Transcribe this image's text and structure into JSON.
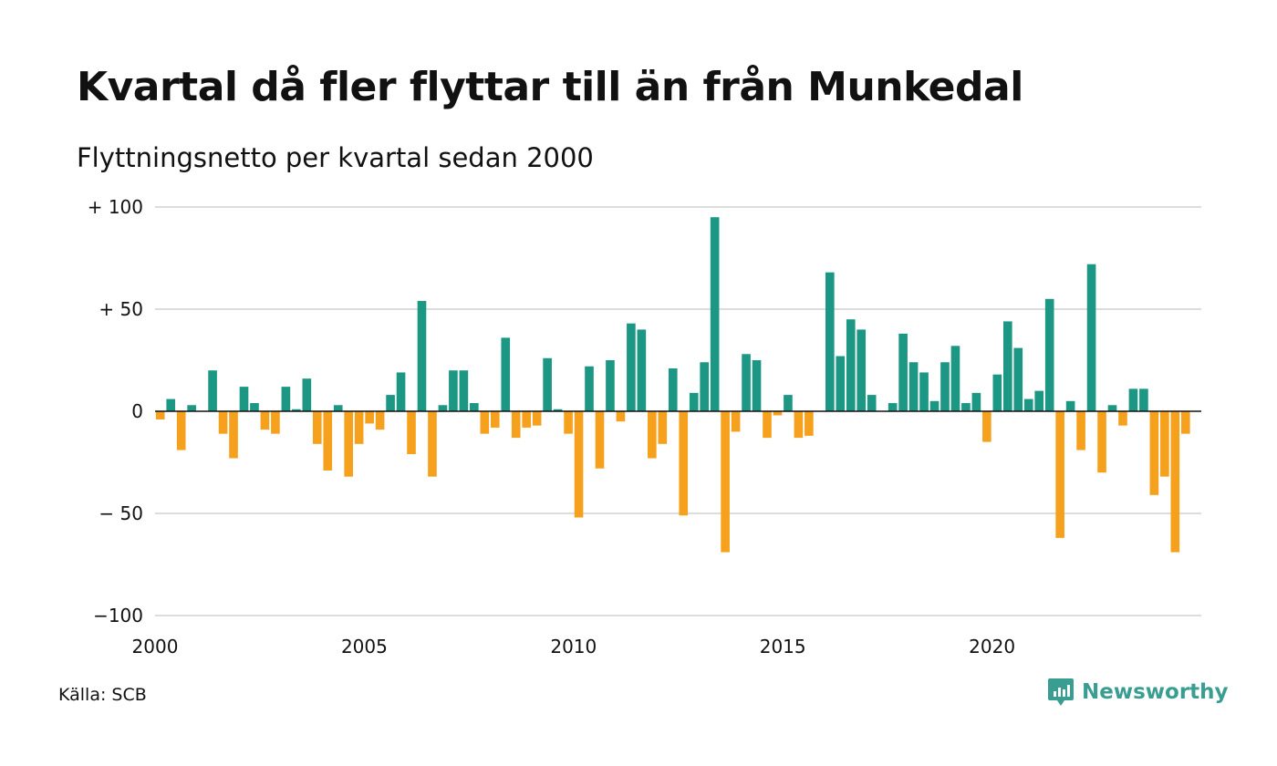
{
  "title": "Kvartal då fler flyttar till än från Munkedal",
  "subtitle": "Flyttningsnetto per kvartal sedan 2000",
  "source": "Källa: SCB",
  "brand": {
    "name": "Newsworthy",
    "icon": "newsworthy-logo-icon"
  },
  "colors": {
    "positive": "#1b9784",
    "negative": "#f6a11d",
    "grid": "#dcdcdc",
    "zero": "#111111",
    "brand": "#3a9d92"
  },
  "chart_data": {
    "type": "bar",
    "title": "Kvartal då fler flyttar till än från Munkedal",
    "subtitle": "Flyttningsnetto per kvartal sedan 2000",
    "x_start_year": 2000,
    "xlim": [
      2000,
      2025
    ],
    "ylim": [
      -100,
      100
    ],
    "y_ticks": [
      100,
      50,
      0,
      -50,
      -100
    ],
    "y_tick_labels": [
      "+ 100",
      "+  50",
      "0",
      "− 50",
      "−100"
    ],
    "x_ticks": [
      2000,
      2005,
      2010,
      2015,
      2020
    ],
    "x_tick_labels": [
      "2000",
      "2005",
      "2010",
      "2015",
      "2020"
    ],
    "grid": true,
    "values": [
      -4,
      6,
      -19,
      3,
      0,
      20,
      -11,
      -23,
      12,
      4,
      -9,
      -11,
      12,
      1,
      16,
      -16,
      -29,
      3,
      -32,
      -16,
      -6,
      -9,
      8,
      19,
      -21,
      54,
      -32,
      3,
      20,
      20,
      4,
      -11,
      -8,
      36,
      -13,
      -8,
      -7,
      26,
      1,
      -11,
      -52,
      22,
      -28,
      25,
      -5,
      43,
      40,
      -23,
      -16,
      21,
      -51,
      9,
      24,
      95,
      -69,
      -10,
      28,
      25,
      -13,
      -2,
      8,
      -13,
      -12,
      0,
      68,
      27,
      45,
      40,
      8,
      0,
      4,
      38,
      24,
      19,
      5,
      24,
      32,
      4,
      9,
      -15,
      18,
      44,
      31,
      6,
      10,
      55,
      -62,
      5,
      -19,
      72,
      -30,
      3,
      -7,
      11,
      11,
      -41,
      -32,
      -69,
      -11
    ]
  }
}
